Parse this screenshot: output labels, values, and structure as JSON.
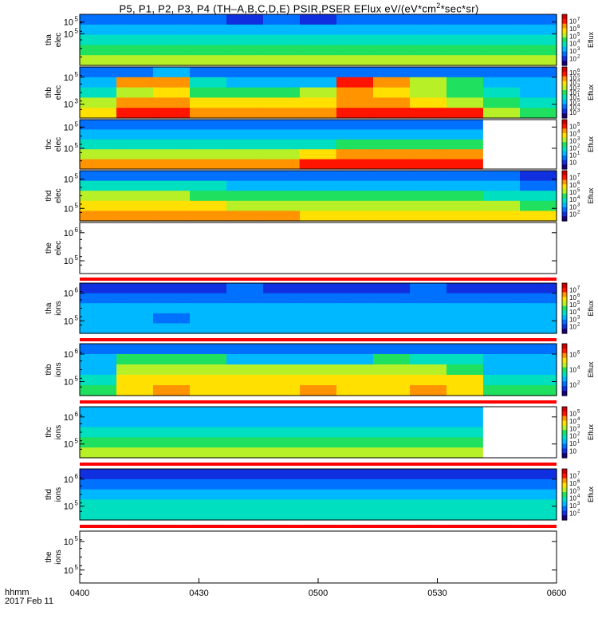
{
  "window": {
    "title_prefix": "P5, P1, P2, P3, P4 (TH–A,B,C,D,E) PSIR,PSER EFlux eV/(eV*cm",
    "title_sup": "2",
    "title_suffix": "*sec*sr)"
  },
  "time_axis": {
    "label": "hhmm",
    "date": "2017 Feb 11",
    "ticks": [
      "0400",
      "0430",
      "0500",
      "0530",
      "0600"
    ]
  },
  "colors": {
    "gap_stripe": "#ff0000",
    "background": "#ffffff"
  },
  "chart_data": [
    {
      "type": "heatmap",
      "id": "tha_elec",
      "ylabel": [
        "tha",
        "elec"
      ],
      "y_ticks": [
        {
          "label": "10",
          "exp": "5",
          "frac": 0.38
        },
        {
          "label": "10",
          "exp": "5",
          "frac": 0.15
        }
      ],
      "cbar": {
        "label": "Eflux",
        "ticks": [
          "10",
          "10",
          "10",
          "10",
          "10",
          "10"
        ],
        "exps": [
          "7",
          "6",
          "5",
          "4",
          "3",
          "2"
        ]
      },
      "coverage": 1.0,
      "gap_below": false,
      "values": [
        [
          2,
          2,
          2,
          2,
          1,
          2,
          1,
          2,
          2,
          2,
          2,
          2,
          2
        ],
        [
          3,
          3,
          3,
          3,
          3,
          3,
          3,
          3,
          3,
          3,
          3,
          3,
          3
        ],
        [
          4,
          4,
          4,
          4,
          4,
          4,
          4,
          4,
          4,
          4,
          4,
          4,
          4
        ],
        [
          5,
          5,
          5,
          5,
          5,
          5,
          5,
          5,
          5,
          5,
          5,
          5,
          5
        ],
        [
          6,
          6,
          6,
          6,
          6,
          6,
          6,
          6,
          6,
          6,
          6,
          6,
          6
        ]
      ]
    },
    {
      "type": "heatmap",
      "id": "thb_elec",
      "ylabel": [
        "thb",
        "elec"
      ],
      "y_ticks": [
        {
          "label": "10",
          "exp": "5",
          "frac": 0.2
        },
        {
          "label": "10",
          "exp": "3",
          "frac": 0.73
        }
      ],
      "cbar": {
        "label": "Eflux",
        "ticks": [
          "10",
          "10",
          "10",
          "10",
          "10",
          "10",
          "10",
          "10",
          "10"
        ],
        "exps": [
          "6",
          "5",
          "4",
          "3",
          "2",
          "1",
          "5",
          "4",
          "3"
        ]
      },
      "coverage": 1.0,
      "gap_below": false,
      "values": [
        [
          2,
          2,
          3,
          2,
          2,
          2,
          2,
          2,
          2,
          2,
          2,
          2,
          2
        ],
        [
          3,
          8,
          8,
          4,
          3,
          3,
          3,
          9,
          8,
          6,
          5,
          3,
          3
        ],
        [
          4,
          6,
          7,
          5,
          5,
          5,
          6,
          8,
          7,
          6,
          5,
          4,
          3
        ],
        [
          6,
          8,
          8,
          7,
          7,
          7,
          7,
          8,
          8,
          7,
          6,
          5,
          4
        ],
        [
          7,
          9,
          9,
          8,
          8,
          8,
          8,
          9,
          9,
          9,
          9,
          6,
          5
        ]
      ]
    },
    {
      "type": "heatmap",
      "id": "thc_elec",
      "ylabel": [
        "thc",
        "elec"
      ],
      "y_ticks": [
        {
          "label": "10",
          "exp": "5",
          "frac": 0.15
        },
        {
          "label": "10",
          "exp": "5",
          "frac": 0.58
        }
      ],
      "cbar": {
        "label": "Eflux",
        "ticks": [
          "10",
          "10",
          "10",
          "10",
          "10",
          "10"
        ],
        "exps": [
          "5",
          "4",
          "3",
          "2",
          "1",
          ""
        ]
      },
      "coverage": 0.845,
      "gap_below": false,
      "values": [
        [
          2,
          2,
          2,
          2,
          2,
          2,
          2,
          2,
          2,
          2,
          2
        ],
        [
          3,
          3,
          3,
          3,
          3,
          3,
          3,
          3,
          3,
          3,
          3
        ],
        [
          4,
          4,
          4,
          4,
          4,
          4,
          4,
          5,
          5,
          5,
          5
        ],
        [
          6,
          6,
          6,
          6,
          6,
          6,
          7,
          8,
          8,
          8,
          8
        ],
        [
          8,
          8,
          8,
          8,
          8,
          8,
          9,
          9,
          9,
          9,
          9
        ]
      ]
    },
    {
      "type": "heatmap",
      "id": "thd_elec",
      "ylabel": [
        "thd",
        "elec"
      ],
      "y_ticks": [
        {
          "label": "10",
          "exp": "5",
          "frac": 0.17
        },
        {
          "label": "10",
          "exp": "5",
          "frac": 0.75
        }
      ],
      "cbar": {
        "label": "Eflux",
        "ticks": [
          "10",
          "10",
          "10",
          "10",
          "10",
          "10"
        ],
        "exps": [
          "7",
          "6",
          "5",
          "4",
          "3",
          "2"
        ]
      },
      "coverage": 1.0,
      "gap_below": true,
      "values": [
        [
          2,
          2,
          2,
          2,
          2,
          2,
          2,
          2,
          2,
          2,
          2,
          2,
          1
        ],
        [
          4,
          4,
          4,
          4,
          3,
          3,
          3,
          3,
          3,
          3,
          3,
          3,
          2
        ],
        [
          6,
          6,
          6,
          5,
          5,
          5,
          5,
          5,
          5,
          5,
          5,
          4,
          4
        ],
        [
          7,
          7,
          7,
          7,
          6,
          6,
          6,
          6,
          6,
          6,
          6,
          6,
          5
        ],
        [
          8,
          8,
          8,
          8,
          8,
          8,
          7,
          7,
          7,
          7,
          7,
          7,
          7
        ]
      ]
    },
    {
      "type": "heatmap",
      "id": "the_elec",
      "ylabel": [
        "the",
        "elec"
      ],
      "y_ticks": [
        {
          "label": "10",
          "exp": "6",
          "frac": 0.2
        },
        {
          "label": "10",
          "exp": "5",
          "frac": 0.75
        }
      ],
      "cbar": null,
      "coverage": 0,
      "gap_below": true,
      "values": []
    },
    {
      "type": "heatmap",
      "id": "tha_ions",
      "ylabel": [
        "tha",
        "ions"
      ],
      "y_ticks": [
        {
          "label": "10",
          "exp": "6",
          "frac": 0.2
        },
        {
          "label": "10",
          "exp": "5",
          "frac": 0.75
        }
      ],
      "cbar": {
        "label": "Eflux",
        "ticks": [
          "10",
          "10",
          "10",
          "10",
          "10",
          "10"
        ],
        "exps": [
          "7",
          "6",
          "5",
          "4",
          "3",
          "2"
        ]
      },
      "coverage": 1.0,
      "gap_below": true,
      "values": [
        [
          1,
          1,
          1,
          1,
          2,
          1,
          1,
          1,
          1,
          2,
          1,
          1,
          1
        ],
        [
          2,
          2,
          2,
          2,
          2,
          2,
          2,
          2,
          2,
          2,
          2,
          2,
          2
        ],
        [
          3,
          3,
          3,
          3,
          3,
          3,
          3,
          3,
          3,
          3,
          3,
          3,
          3
        ],
        [
          3,
          3,
          2,
          3,
          3,
          3,
          3,
          3,
          3,
          3,
          3,
          3,
          3
        ],
        [
          3,
          3,
          3,
          3,
          3,
          3,
          3,
          3,
          3,
          3,
          3,
          3,
          3
        ]
      ]
    },
    {
      "type": "heatmap",
      "id": "thb_ions",
      "ylabel": [
        "thb",
        "ions"
      ],
      "y_ticks": [
        {
          "label": "10",
          "exp": "6",
          "frac": 0.2
        },
        {
          "label": "10",
          "exp": "5",
          "frac": 0.73
        }
      ],
      "cbar": {
        "label": "Eflux",
        "ticks": [
          "10",
          "10",
          "10"
        ],
        "exps": [
          "6",
          "4",
          "2"
        ]
      },
      "coverage": 1.0,
      "gap_below": true,
      "values": [
        [
          2,
          2,
          2,
          2,
          2,
          2,
          2,
          2,
          2,
          2,
          2,
          2,
          2
        ],
        [
          3,
          5,
          5,
          5,
          3,
          3,
          3,
          3,
          5,
          4,
          4,
          3,
          3
        ],
        [
          3,
          6,
          6,
          6,
          6,
          6,
          6,
          6,
          6,
          6,
          5,
          3,
          3
        ],
        [
          4,
          7,
          7,
          7,
          7,
          7,
          7,
          7,
          7,
          7,
          7,
          4,
          4
        ],
        [
          5,
          7,
          8,
          7,
          7,
          7,
          8,
          7,
          7,
          8,
          7,
          5,
          5
        ]
      ]
    },
    {
      "type": "heatmap",
      "id": "thc_ions",
      "ylabel": [
        "thc",
        "ions"
      ],
      "y_ticks": [
        {
          "label": "10",
          "exp": "6",
          "frac": 0.2
        },
        {
          "label": "10",
          "exp": "5",
          "frac": 0.73
        }
      ],
      "cbar": {
        "label": "Eflux",
        "ticks": [
          "10",
          "10",
          "10",
          "10",
          "10",
          "10"
        ],
        "exps": [
          "5",
          "4",
          "3",
          "2",
          "1",
          ""
        ]
      },
      "coverage": 0.845,
      "gap_below": true,
      "values": [
        [
          3,
          3,
          3,
          3,
          3,
          3,
          3,
          3,
          3,
          3,
          3
        ],
        [
          3,
          3,
          3,
          3,
          3,
          3,
          3,
          3,
          3,
          3,
          3
        ],
        [
          4,
          4,
          4,
          4,
          4,
          4,
          4,
          4,
          4,
          4,
          4
        ],
        [
          5,
          5,
          5,
          5,
          5,
          5,
          5,
          5,
          5,
          5,
          5
        ],
        [
          6,
          6,
          6,
          6,
          6,
          6,
          6,
          6,
          6,
          6,
          6
        ]
      ]
    },
    {
      "type": "heatmap",
      "id": "thd_ions",
      "ylabel": [
        "thd",
        "ions"
      ],
      "y_ticks": [
        {
          "label": "10",
          "exp": "6",
          "frac": 0.2
        },
        {
          "label": "10",
          "exp": "5",
          "frac": 0.73
        }
      ],
      "cbar": {
        "label": "Eflux",
        "ticks": [
          "10",
          "10",
          "10",
          "10",
          "10",
          "10"
        ],
        "exps": [
          "7",
          "6",
          "5",
          "4",
          "3",
          "2"
        ]
      },
      "coverage": 1.0,
      "gap_below": true,
      "values": [
        [
          1,
          1,
          1,
          1,
          1,
          1,
          1,
          1,
          1,
          1,
          1,
          1,
          1
        ],
        [
          2,
          2,
          2,
          2,
          2,
          2,
          2,
          2,
          2,
          2,
          2,
          2,
          2
        ],
        [
          3,
          3,
          3,
          3,
          3,
          3,
          3,
          3,
          3,
          3,
          3,
          3,
          3
        ],
        [
          4,
          4,
          4,
          4,
          4,
          4,
          4,
          4,
          4,
          4,
          4,
          4,
          4
        ],
        [
          4,
          4,
          4,
          4,
          4,
          4,
          4,
          4,
          4,
          4,
          4,
          4,
          4
        ]
      ]
    },
    {
      "type": "heatmap",
      "id": "the_ions",
      "ylabel": [
        "the",
        "ions"
      ],
      "y_ticks": [
        {
          "label": "10",
          "exp": "5",
          "frac": 0.2
        },
        {
          "label": "10",
          "exp": "5",
          "frac": 0.75
        }
      ],
      "cbar": null,
      "coverage": 0,
      "gap_below": false,
      "values": []
    }
  ]
}
